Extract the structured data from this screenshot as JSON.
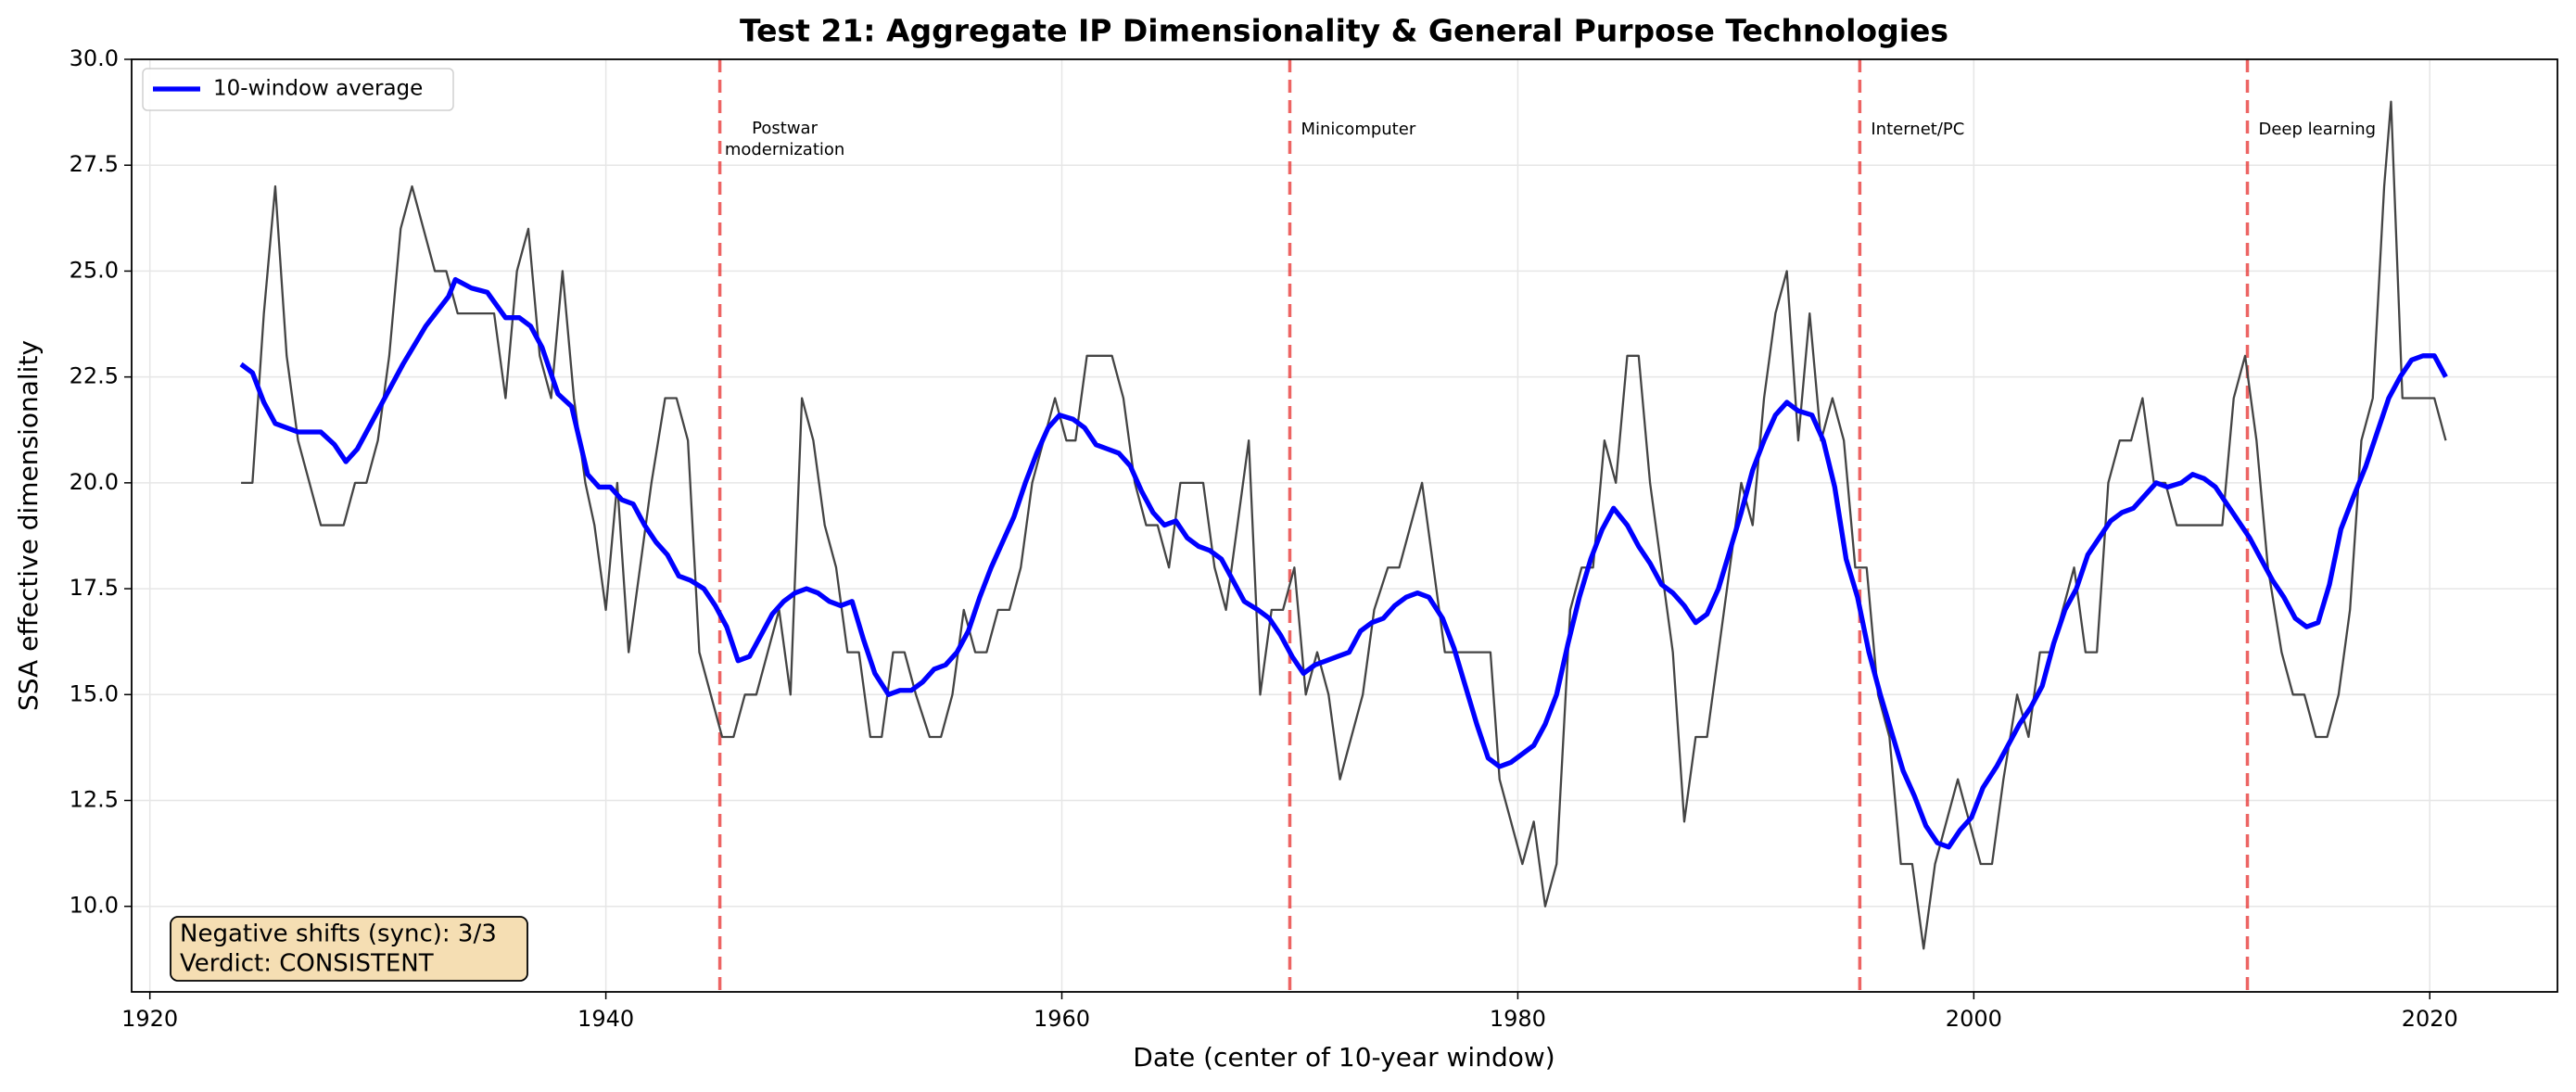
{
  "chart_data": {
    "type": "line",
    "title": "Test 21: Aggregate IP Dimensionality & General Purpose Technologies",
    "xlabel": "Date (center of 10-year window)",
    "ylabel": "SSA effective dimensionality",
    "xlim": [
      1919.2,
      2025.6
    ],
    "ylim": [
      7.98,
      30
    ],
    "xticks": [
      1920,
      1940,
      1960,
      1980,
      2000,
      2020
    ],
    "yticks": [
      {
        "value": 10,
        "label": "10.0"
      },
      {
        "value": 12.5,
        "label": "12.5"
      },
      {
        "value": 15,
        "label": "15.0"
      },
      {
        "value": 17.5,
        "label": "17.5"
      },
      {
        "value": 20,
        "label": "20.0"
      },
      {
        "value": 22.5,
        "label": "22.5"
      },
      {
        "value": 25,
        "label": "25.0"
      },
      {
        "value": 27.5,
        "label": "27.5"
      },
      {
        "value": 30,
        "label": "30.0"
      }
    ],
    "grid": true,
    "legend": "upper left",
    "series": [
      {
        "color": "#444444",
        "x": [
          1924.0,
          1924.5,
          1925.0,
          1925.5,
          1926.0,
          1926.5,
          1927.5,
          1928.5,
          1929.0,
          1929.5,
          1930.0,
          1930.5,
          1931.0,
          1931.5,
          1932.5,
          1933.0,
          1933.5,
          1935.1,
          1935.6,
          1936.1,
          1936.6,
          1937.1,
          1937.6,
          1938.1,
          1938.6,
          1939.1,
          1939.5,
          1940.0,
          1940.5,
          1941.0,
          1941.5,
          1942.0,
          1942.6,
          1943.1,
          1943.6,
          1944.1,
          1944.6,
          1945.1,
          1945.6,
          1946.1,
          1946.6,
          1947.1,
          1947.6,
          1948.1,
          1948.6,
          1949.1,
          1949.6,
          1950.1,
          1950.6,
          1951.1,
          1951.6,
          1952.1,
          1952.6,
          1953.1,
          1953.6,
          1954.2,
          1954.7,
          1955.2,
          1955.7,
          1956.2,
          1956.7,
          1957.2,
          1957.7,
          1958.2,
          1958.7,
          1959.2,
          1959.7,
          1960.2,
          1960.6,
          1961.1,
          1962.2,
          1962.7,
          1963.2,
          1963.7,
          1964.2,
          1964.7,
          1965.2,
          1966.2,
          1966.7,
          1967.2,
          1967.7,
          1968.2,
          1968.7,
          1969.2,
          1969.7,
          1970.2,
          1970.7,
          1971.2,
          1971.7,
          1972.2,
          1972.7,
          1973.2,
          1973.7,
          1974.3,
          1974.8,
          1975.3,
          1975.8,
          1976.3,
          1976.8,
          1977.8,
          1978.8,
          1979.2,
          1979.7,
          1980.2,
          1980.7,
          1981.2,
          1981.7,
          1982.3,
          1982.8,
          1983.3,
          1983.8,
          1984.3,
          1984.8,
          1985.3,
          1985.8,
          1986.3,
          1986.8,
          1987.3,
          1987.8,
          1988.3,
          1988.8,
          1989.3,
          1989.8,
          1990.3,
          1990.8,
          1991.3,
          1991.8,
          1992.3,
          1992.8,
          1993.3,
          1993.8,
          1994.3,
          1994.8,
          1995.3,
          1995.8,
          1996.3,
          1996.8,
          1997.3,
          1997.8,
          1998.3,
          1998.8,
          1999.3,
          1999.8,
          2000.3,
          2000.8,
          2001.3,
          2001.9,
          2002.4,
          2002.9,
          2003.4,
          2003.9,
          2004.4,
          2004.9,
          2005.4,
          2005.9,
          2006.4,
          2006.9,
          2007.4,
          2007.9,
          2008.4,
          2008.9,
          2010.9,
          2011.4,
          2011.9,
          2012.4,
          2012.9,
          2013.5,
          2014.0,
          2014.5,
          2015.0,
          2015.5,
          2016.0,
          2016.5,
          2017.0,
          2017.5,
          2018.0,
          2018.3,
          2018.8,
          2020.2,
          2020.7
        ],
        "values": [
          20,
          20,
          24,
          27,
          23,
          21,
          19,
          19,
          20,
          20,
          21,
          23,
          26,
          27,
          25,
          25,
          24,
          24,
          22,
          25,
          26,
          23,
          22,
          25,
          22,
          20,
          19,
          17,
          20,
          16,
          18,
          20,
          22,
          22,
          21,
          16,
          15,
          14,
          14,
          15,
          15,
          16,
          17,
          15,
          22,
          21,
          19,
          18,
          16,
          16,
          14,
          14,
          16,
          16,
          15,
          14,
          14,
          15,
          17,
          16,
          16,
          17,
          17,
          18,
          20,
          21,
          22,
          21,
          21,
          23,
          23,
          22,
          20,
          19,
          19,
          18,
          20,
          20,
          18,
          17,
          19,
          21,
          15,
          17,
          17,
          18,
          15,
          16,
          15,
          13,
          14,
          15,
          17,
          18,
          18,
          19,
          20,
          18,
          16,
          16,
          16,
          13,
          12,
          11,
          12,
          10,
          11,
          17,
          18,
          18,
          21,
          20,
          23,
          23,
          20,
          18,
          16,
          12,
          14,
          14,
          16,
          18,
          20,
          19,
          22,
          24,
          25,
          21,
          24,
          21,
          22,
          21,
          18,
          18,
          15,
          14,
          11,
          11,
          9,
          11,
          12,
          13,
          12,
          11,
          11,
          13,
          15,
          14,
          16,
          16,
          17,
          18,
          16,
          16,
          20,
          21,
          21,
          22,
          20,
          20,
          19,
          19,
          22,
          23,
          21,
          18,
          16,
          15,
          15,
          14,
          14,
          15,
          17,
          21,
          22,
          27,
          29,
          22,
          22,
          21
        ]
      },
      {
        "name": "10-window average",
        "color": "#0000ff",
        "x": [
          1924,
          1924.5,
          1925,
          1925.5,
          1926.5,
          1927.5,
          1928.1,
          1928.6,
          1929.1,
          1930.1,
          1931.1,
          1932.1,
          1933.1,
          1933.4,
          1934.1,
          1934.8,
          1935.6,
          1936.2,
          1936.7,
          1937.2,
          1937.9,
          1938.5,
          1939.2,
          1939.7,
          1940.2,
          1940.7,
          1941.2,
          1941.7,
          1942.2,
          1942.7,
          1943.2,
          1943.7,
          1944.3,
          1944.8,
          1945.3,
          1945.8,
          1946.3,
          1946.8,
          1947.3,
          1947.8,
          1948.3,
          1948.8,
          1949.3,
          1949.8,
          1950.3,
          1950.8,
          1951.3,
          1951.8,
          1952.4,
          1952.9,
          1953.4,
          1953.9,
          1954.4,
          1954.9,
          1955.4,
          1955.9,
          1956.4,
          1956.9,
          1957.4,
          1957.9,
          1958.4,
          1958.9,
          1959.4,
          1959.9,
          1960.5,
          1961,
          1961.5,
          1962,
          1962.5,
          1963,
          1963.5,
          1964,
          1964.5,
          1965,
          1965.5,
          1966,
          1966.5,
          1967,
          1967.5,
          1968,
          1968.6,
          1969.1,
          1969.6,
          1970.1,
          1970.6,
          1971.1,
          1971.6,
          1972.1,
          1972.6,
          1973.1,
          1973.6,
          1974.1,
          1974.6,
          1975.1,
          1975.6,
          1976.1,
          1976.7,
          1977.2,
          1977.7,
          1978.2,
          1978.7,
          1979.2,
          1979.7,
          1980.2,
          1980.7,
          1981.2,
          1981.7,
          1982.2,
          1982.7,
          1983.2,
          1983.7,
          1984.2,
          1984.8,
          1985.3,
          1985.8,
          1986.3,
          1986.8,
          1987.3,
          1987.8,
          1988.3,
          1988.8,
          1989.3,
          1989.8,
          1990.3,
          1990.8,
          1991.3,
          1991.8,
          1992.3,
          1992.9,
          1993.4,
          1993.9,
          1994.4,
          1994.9,
          1995.4,
          1995.9,
          1996.4,
          1996.9,
          1997.4,
          1997.9,
          1998.4,
          1998.9,
          1999.4,
          1999.9,
          2000.4,
          2001,
          2001.5,
          2002,
          2002.5,
          2003,
          2003.5,
          2004,
          2004.5,
          2005,
          2005.5,
          2006,
          2006.5,
          2007,
          2007.5,
          2008,
          2008.5,
          2009.1,
          2009.6,
          2010.1,
          2010.6,
          2011.1,
          2011.6,
          2012.1,
          2012.6,
          2013.1,
          2013.6,
          2014.1,
          2014.6,
          2015.1,
          2015.6,
          2016.1,
          2016.6,
          2017.2,
          2017.7,
          2018.2,
          2018.7,
          2019.2,
          2019.7,
          2020.2,
          2020.7
        ],
        "values": [
          22.8,
          22.6,
          21.9,
          21.4,
          21.2,
          21.2,
          20.9,
          20.5,
          20.8,
          21.8,
          22.8,
          23.7,
          24.4,
          24.8,
          24.6,
          24.5,
          23.9,
          23.9,
          23.7,
          23.2,
          22.1,
          21.8,
          20.2,
          19.9,
          19.9,
          19.6,
          19.5,
          19.0,
          18.6,
          18.3,
          17.8,
          17.7,
          17.5,
          17.1,
          16.6,
          15.8,
          15.9,
          16.4,
          16.9,
          17.2,
          17.4,
          17.5,
          17.4,
          17.2,
          17.1,
          17.2,
          16.3,
          15.5,
          15.0,
          15.1,
          15.1,
          15.3,
          15.6,
          15.7,
          16.0,
          16.5,
          17.3,
          18.0,
          18.6,
          19.2,
          20.0,
          20.7,
          21.3,
          21.6,
          21.5,
          21.3,
          20.9,
          20.8,
          20.7,
          20.4,
          19.8,
          19.3,
          19.0,
          19.1,
          18.7,
          18.5,
          18.4,
          18.2,
          17.7,
          17.2,
          17.0,
          16.8,
          16.4,
          15.9,
          15.5,
          15.7,
          15.8,
          15.9,
          16.0,
          16.5,
          16.7,
          16.8,
          17.1,
          17.3,
          17.4,
          17.3,
          16.8,
          16.1,
          15.2,
          14.3,
          13.5,
          13.3,
          13.4,
          13.6,
          13.8,
          14.3,
          15.0,
          16.2,
          17.3,
          18.2,
          18.9,
          19.4,
          19.0,
          18.5,
          18.1,
          17.6,
          17.4,
          17.1,
          16.7,
          16.9,
          17.5,
          18.4,
          19.3,
          20.3,
          21.0,
          21.6,
          21.9,
          21.7,
          21.6,
          21.0,
          19.9,
          18.2,
          17.3,
          16.0,
          15.0,
          14.1,
          13.2,
          12.6,
          11.9,
          11.5,
          11.4,
          11.8,
          12.1,
          12.8,
          13.3,
          13.8,
          14.3,
          14.7,
          15.2,
          16.2,
          17.0,
          17.5,
          18.3,
          18.7,
          19.1,
          19.3,
          19.4,
          19.7,
          20.0,
          19.9,
          20.0,
          20.2,
          20.1,
          19.9,
          19.5,
          19.1,
          18.7,
          18.2,
          17.7,
          17.3,
          16.8,
          16.6,
          16.7,
          17.6,
          18.9,
          19.6,
          20.4,
          21.2,
          22.0,
          22.5,
          22.9,
          23.0,
          23.0,
          22.5
        ]
      }
    ],
    "event_color": "#e8312f",
    "events": [
      {
        "x": 1945,
        "label": [
          "Postwar",
          "modernization"
        ]
      },
      {
        "x": 1970,
        "label": [
          "Minicomputer"
        ]
      },
      {
        "x": 1995,
        "label": [
          "Internet/PC"
        ]
      },
      {
        "x": 2012,
        "label": [
          "Deep learning"
        ]
      }
    ],
    "annotations": [
      "Negative shifts (sync): 3/3",
      "Verdict: CONSISTENT"
    ]
  }
}
